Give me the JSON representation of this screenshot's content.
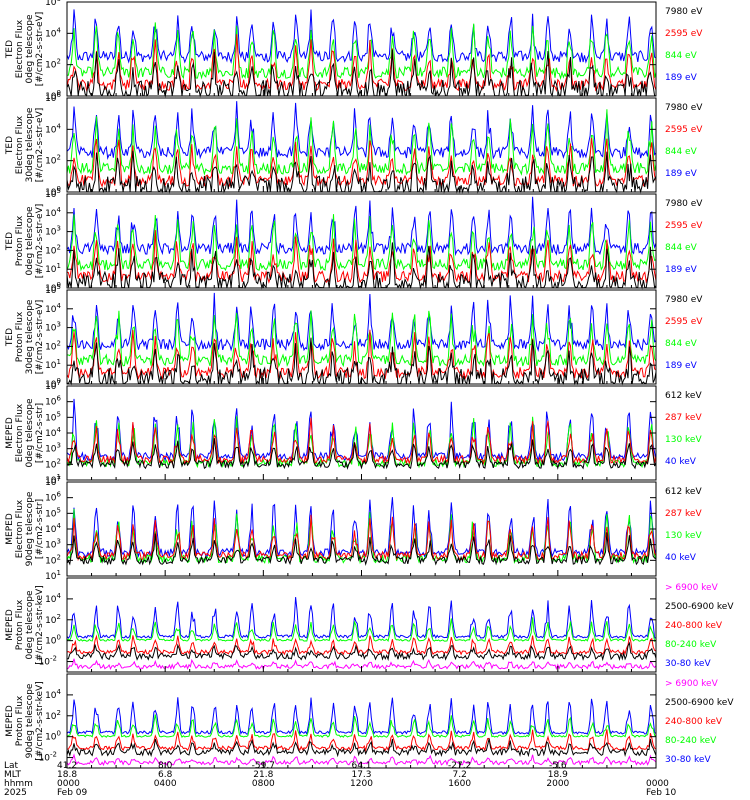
{
  "colors": {
    "black": "#000000",
    "red": "#ff0000",
    "green": "#00ff00",
    "blue": "#0000ff",
    "magenta": "#ff00ff"
  },
  "chart_data": [
    {
      "type": "line",
      "instrument": "TED",
      "ylabel_lines": [
        "TED",
        "Electron Flux",
        "0deg telescope",
        "[#/cm2-s-str-eV]"
      ],
      "log_scale": true,
      "ylim_exp": [
        0,
        6
      ],
      "ticks": [
        {
          "exp": 0,
          "label": "10",
          "sup": "0"
        },
        {
          "exp": 2,
          "label": "10",
          "sup": "2"
        },
        {
          "exp": 4,
          "label": "10",
          "sup": "4"
        },
        {
          "exp": 6,
          "label": "10",
          "sup": "6"
        }
      ],
      "series": [
        {
          "name": "7980 eV",
          "color": "#000000"
        },
        {
          "name": "2595 eV",
          "color": "#ff0000"
        },
        {
          "name": "844 eV",
          "color": "#00ff00"
        },
        {
          "name": "189 eV",
          "color": "#0000ff"
        }
      ]
    },
    {
      "type": "line",
      "instrument": "TED",
      "ylabel_lines": [
        "TED",
        "Electron Flux",
        "30deg telescope",
        "[#/cm2-s-str-eV]"
      ],
      "log_scale": true,
      "ylim_exp": [
        0,
        6
      ],
      "ticks": [
        {
          "exp": 0,
          "label": "10",
          "sup": "0"
        },
        {
          "exp": 2,
          "label": "10",
          "sup": "2"
        },
        {
          "exp": 4,
          "label": "10",
          "sup": "4"
        },
        {
          "exp": 6,
          "label": "10",
          "sup": "6"
        }
      ],
      "series": [
        {
          "name": "7980 eV",
          "color": "#000000"
        },
        {
          "name": "2595 eV",
          "color": "#ff0000"
        },
        {
          "name": "844 eV",
          "color": "#00ff00"
        },
        {
          "name": "189 eV",
          "color": "#0000ff"
        }
      ]
    },
    {
      "type": "line",
      "instrument": "TED",
      "ylabel_lines": [
        "TED",
        "Proton Flux",
        "0deg telescope",
        "[#/cm2-s-str-eV]"
      ],
      "log_scale": true,
      "ylim_exp": [
        0,
        5
      ],
      "ticks": [
        {
          "exp": 0,
          "label": "10",
          "sup": "0"
        },
        {
          "exp": 1,
          "label": "10",
          "sup": "1"
        },
        {
          "exp": 2,
          "label": "10",
          "sup": "2"
        },
        {
          "exp": 3,
          "label": "10",
          "sup": "3"
        },
        {
          "exp": 4,
          "label": "10",
          "sup": "4"
        },
        {
          "exp": 5,
          "label": "10",
          "sup": "5"
        }
      ],
      "series": [
        {
          "name": "7980 eV",
          "color": "#000000"
        },
        {
          "name": "2595 eV",
          "color": "#ff0000"
        },
        {
          "name": "844 eV",
          "color": "#00ff00"
        },
        {
          "name": "189 eV",
          "color": "#0000ff"
        }
      ]
    },
    {
      "type": "line",
      "instrument": "TED",
      "ylabel_lines": [
        "TED",
        "Proton Flux",
        "30deg telescope",
        "[#/cm2-s-str-eV]"
      ],
      "log_scale": true,
      "ylim_exp": [
        0,
        5
      ],
      "ticks": [
        {
          "exp": 0,
          "label": "10",
          "sup": "0"
        },
        {
          "exp": 1,
          "label": "10",
          "sup": "1"
        },
        {
          "exp": 2,
          "label": "10",
          "sup": "2"
        },
        {
          "exp": 3,
          "label": "10",
          "sup": "3"
        },
        {
          "exp": 4,
          "label": "10",
          "sup": "4"
        },
        {
          "exp": 5,
          "label": "10",
          "sup": "5"
        }
      ],
      "series": [
        {
          "name": "7980 eV",
          "color": "#000000"
        },
        {
          "name": "2595 eV",
          "color": "#ff0000"
        },
        {
          "name": "844 eV",
          "color": "#00ff00"
        },
        {
          "name": "189 eV",
          "color": "#0000ff"
        }
      ]
    },
    {
      "type": "line",
      "instrument": "MEPED",
      "ylabel_lines": [
        "MEPED",
        "Electron Flux",
        "0deg telescope",
        "[#/cm2-s-str]"
      ],
      "log_scale": true,
      "ylim_exp": [
        1,
        7
      ],
      "ticks": [
        {
          "exp": 1,
          "label": "10",
          "sup": "1"
        },
        {
          "exp": 2,
          "label": "10",
          "sup": "2"
        },
        {
          "exp": 3,
          "label": "10",
          "sup": "3"
        },
        {
          "exp": 4,
          "label": "10",
          "sup": "4"
        },
        {
          "exp": 5,
          "label": "10",
          "sup": "5"
        },
        {
          "exp": 6,
          "label": "10",
          "sup": "6"
        },
        {
          "exp": 7,
          "label": "10",
          "sup": "7"
        }
      ],
      "series": [
        {
          "name": "612 keV",
          "color": "#000000"
        },
        {
          "name": "287 keV",
          "color": "#ff0000"
        },
        {
          "name": "130 keV",
          "color": "#00ff00"
        },
        {
          "name": "40 keV",
          "color": "#0000ff"
        }
      ]
    },
    {
      "type": "line",
      "instrument": "MEPED",
      "ylabel_lines": [
        "MEPED",
        "Electron Flux",
        "90deg telescope",
        "[#/cm2-s-str]"
      ],
      "log_scale": true,
      "ylim_exp": [
        1,
        7
      ],
      "ticks": [
        {
          "exp": 1,
          "label": "10",
          "sup": "1"
        },
        {
          "exp": 2,
          "label": "10",
          "sup": "2"
        },
        {
          "exp": 3,
          "label": "10",
          "sup": "3"
        },
        {
          "exp": 4,
          "label": "10",
          "sup": "4"
        },
        {
          "exp": 5,
          "label": "10",
          "sup": "5"
        },
        {
          "exp": 6,
          "label": "10",
          "sup": "6"
        },
        {
          "exp": 7,
          "label": "10",
          "sup": "7"
        }
      ],
      "series": [
        {
          "name": "612 keV",
          "color": "#000000"
        },
        {
          "name": "287 keV",
          "color": "#ff0000"
        },
        {
          "name": "130 keV",
          "color": "#00ff00"
        },
        {
          "name": "40 keV",
          "color": "#0000ff"
        }
      ]
    },
    {
      "type": "line",
      "instrument": "MEPED",
      "ylabel_lines": [
        "MEPED",
        "Proton Flux",
        "0deg telescope",
        "[#/cm2-s-str-keV]"
      ],
      "log_scale": true,
      "ylim_exp": [
        -3,
        6
      ],
      "ticks": [
        {
          "exp": -2,
          "label": "10",
          "sup": "-2"
        },
        {
          "exp": 0,
          "label": "10",
          "sup": "0"
        },
        {
          "exp": 2,
          "label": "10",
          "sup": "2"
        },
        {
          "exp": 4,
          "label": "10",
          "sup": "4"
        }
      ],
      "series": [
        {
          "name": "> 6900 keV",
          "color": "#ff00ff"
        },
        {
          "name": "2500-6900 keV",
          "color": "#000000"
        },
        {
          "name": "240-800 keV",
          "color": "#ff0000"
        },
        {
          "name": "80-240 keV",
          "color": "#00ff00"
        },
        {
          "name": "30-80 keV",
          "color": "#0000ff"
        }
      ]
    },
    {
      "type": "line",
      "instrument": "MEPED",
      "ylabel_lines": [
        "MEPED",
        "Proton Flux",
        "90deg telescope",
        "[#/cm2-s-str-keV]"
      ],
      "log_scale": true,
      "ylim_exp": [
        -3,
        6
      ],
      "ticks": [
        {
          "exp": -2,
          "label": "10",
          "sup": "-2"
        },
        {
          "exp": 0,
          "label": "10",
          "sup": "0"
        },
        {
          "exp": 2,
          "label": "10",
          "sup": "2"
        },
        {
          "exp": 4,
          "label": "10",
          "sup": "4"
        }
      ],
      "series": [
        {
          "name": "> 6900 keV",
          "color": "#ff00ff"
        },
        {
          "name": "2500-6900 keV",
          "color": "#000000"
        },
        {
          "name": "240-800 keV",
          "color": "#ff0000"
        },
        {
          "name": "80-240 keV",
          "color": "#00ff00"
        },
        {
          "name": "30-80 keV",
          "color": "#0000ff"
        }
      ]
    }
  ],
  "x_axis": {
    "row_labels": [
      "Lat",
      "MLT",
      "hhmm",
      "2025"
    ],
    "columns": [
      {
        "lat": "41.2",
        "mlt": "18.8",
        "hhmm": "0000",
        "date": "Feb 09"
      },
      {
        "lat": "8.0",
        "mlt": "6.8",
        "hhmm": "0400",
        "date": ""
      },
      {
        "lat": "-59.7",
        "mlt": "21.8",
        "hhmm": "0800",
        "date": ""
      },
      {
        "lat": "64.1",
        "mlt": "17.3",
        "hhmm": "1200",
        "date": ""
      },
      {
        "lat": "-27.2",
        "mlt": "7.2",
        "hhmm": "1600",
        "date": ""
      },
      {
        "lat": "-5.6",
        "mlt": "18.9",
        "hhmm": "2000",
        "date": ""
      },
      {
        "lat": "",
        "mlt": "",
        "hhmm": "0000",
        "date": "Feb 10"
      }
    ]
  }
}
